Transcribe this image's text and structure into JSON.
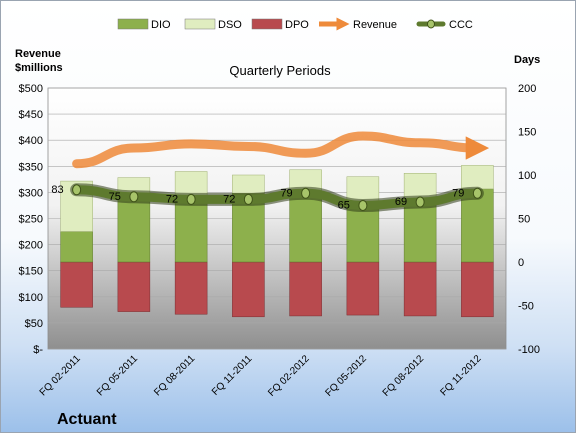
{
  "company": "Actuant",
  "chart_data": {
    "type": "bar",
    "title": "Quarterly Periods",
    "left_axis_label": [
      "Revenue",
      "$millions"
    ],
    "right_axis_label": "Days",
    "left_axis": {
      "min": 0,
      "max": 500,
      "step": 50,
      "ticks": [
        "$-",
        "$50",
        "$100",
        "$150",
        "$200",
        "$250",
        "$300",
        "$350",
        "$400",
        "$450",
        "$500"
      ]
    },
    "right_axis": {
      "min": -100,
      "max": 200,
      "step": 50,
      "ticks": [
        "-100",
        "-50",
        "0",
        "50",
        "100",
        "150",
        "200"
      ]
    },
    "categories": [
      "FQ 02-2011",
      "FQ 05-2011",
      "FQ 08-2011",
      "FQ 11-2011",
      "FQ 02-2012",
      "FQ 05-2012",
      "FQ 08-2012",
      "FQ 11-2012"
    ],
    "legend": [
      "DIO",
      "DSO",
      "DPO",
      "Revenue",
      "CCC"
    ],
    "series": [
      {
        "name": "DIO",
        "axis": "right",
        "kind": "stacked-bar",
        "color": "#8db04c",
        "values": [
          35,
          76,
          75,
          79,
          75,
          69,
          73,
          84
        ]
      },
      {
        "name": "DSO",
        "axis": "right",
        "kind": "stacked-bar",
        "color": "#e0edc0",
        "values": [
          58,
          21,
          29,
          21,
          31,
          29,
          29,
          27
        ]
      },
      {
        "name": "DPO",
        "axis": "right",
        "kind": "stacked-bar-negative",
        "color": "#b84a4e",
        "values": [
          -52,
          -57,
          -60,
          -63,
          -62,
          -61,
          -62,
          -63
        ]
      },
      {
        "name": "Revenue",
        "axis": "left",
        "kind": "line",
        "color": "#ee8a3a",
        "values": [
          355,
          385,
          393,
          388,
          375,
          408,
          395,
          385
        ]
      },
      {
        "name": "CCC",
        "axis": "right",
        "kind": "line",
        "color": "#5e7a2e",
        "values": [
          83,
          75,
          72,
          72,
          79,
          65,
          69,
          79
        ],
        "labels": [
          "83",
          "75",
          "72",
          "72",
          "79",
          "65",
          "69",
          "79"
        ]
      }
    ]
  }
}
